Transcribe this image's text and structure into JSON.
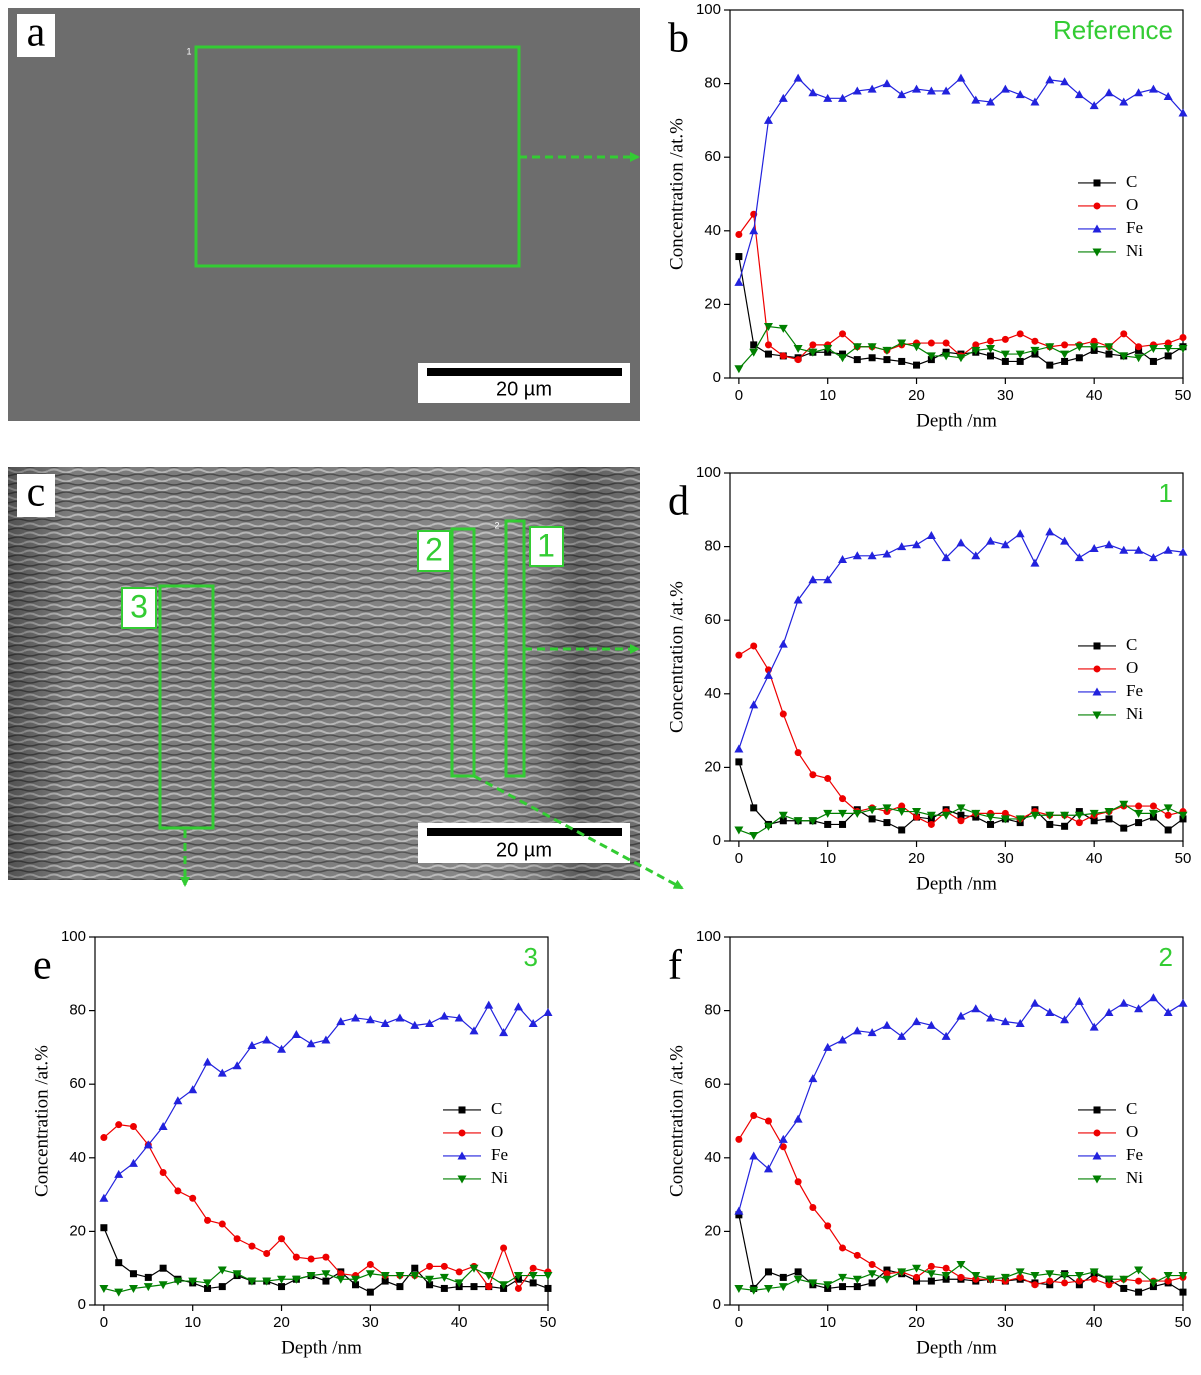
{
  "images": [
    {
      "panel_label": "a",
      "scale_bar": "20 µm",
      "marker": "1"
    },
    {
      "panel_label": "c",
      "scale_bar": "20 µm",
      "marker": "2",
      "regions": [
        "1",
        "2",
        "3"
      ]
    }
  ],
  "chart_data": [
    {
      "type": "line",
      "panel_label": "b",
      "annotation": "Reference",
      "x_label": "Depth /nm",
      "y_label": "Concentration /at.%",
      "x": [
        0,
        1.67,
        3.33,
        5,
        6.67,
        8.33,
        10,
        11.67,
        13.33,
        15,
        16.67,
        18.33,
        20,
        21.67,
        23.33,
        25,
        26.67,
        28.33,
        30,
        31.67,
        33.33,
        35,
        36.67,
        38.33,
        40,
        41.67,
        43.33,
        45,
        46.67,
        48.33,
        50
      ],
      "xlim": [
        -1,
        50
      ],
      "ylim": [
        0,
        100
      ],
      "xticks": [
        0,
        10,
        20,
        30,
        40,
        50
      ],
      "yticks": [
        0,
        20,
        40,
        60,
        80,
        100
      ],
      "legend": "right",
      "series": [
        {
          "name": "C",
          "color": "#000000",
          "marker": "square",
          "values": [
            33,
            9,
            6.5,
            6,
            5.5,
            7,
            7,
            6.5,
            5,
            5.5,
            5,
            4.5,
            3.5,
            5,
            7,
            6.5,
            7,
            6,
            4.5,
            4.5,
            6.5,
            3.5,
            4.5,
            5.5,
            7.5,
            6.5,
            6,
            7.5,
            4.5,
            6,
            8.5
          ]
        },
        {
          "name": "O",
          "color": "#ee0000",
          "marker": "circle",
          "values": [
            39,
            44.5,
            9,
            6,
            5,
            9,
            9,
            12,
            8.5,
            8.5,
            7.5,
            9,
            9.5,
            9.5,
            9.5,
            6,
            9,
            10,
            10.5,
            12,
            10,
            8.5,
            9,
            9,
            10,
            8.5,
            12,
            8.5,
            9,
            9.5,
            11
          ]
        },
        {
          "name": "Fe",
          "color": "#2222dd",
          "marker": "triangle-up",
          "values": [
            26,
            40,
            70,
            76,
            81.5,
            77.5,
            76,
            76,
            78,
            78.5,
            80,
            77,
            78.5,
            78,
            78,
            81.5,
            75.5,
            75,
            78.5,
            77,
            75,
            81,
            80.5,
            77,
            74,
            77.5,
            75,
            77.5,
            78.5,
            76.5,
            72
          ]
        },
        {
          "name": "Ni",
          "color": "#008000",
          "marker": "triangle-down",
          "values": [
            2.5,
            7,
            14,
            13.5,
            8,
            7,
            8,
            5.5,
            8.5,
            8.5,
            7.5,
            9.5,
            8.5,
            6,
            6,
            5.5,
            7.5,
            8,
            6.5,
            6.5,
            7.5,
            8.5,
            6.5,
            8.5,
            8.5,
            8.5,
            6,
            5.5,
            8,
            8,
            8
          ]
        }
      ]
    },
    {
      "type": "line",
      "panel_label": "d",
      "annotation": "1",
      "x_label": "Depth /nm",
      "y_label": "Concentration /at.%",
      "x": [
        0,
        1.67,
        3.33,
        5,
        6.67,
        8.33,
        10,
        11.67,
        13.33,
        15,
        16.67,
        18.33,
        20,
        21.67,
        23.33,
        25,
        26.67,
        28.33,
        30,
        31.67,
        33.33,
        35,
        36.67,
        38.33,
        40,
        41.67,
        43.33,
        45,
        46.67,
        48.33,
        50
      ],
      "xlim": [
        -1,
        50
      ],
      "ylim": [
        0,
        100
      ],
      "xticks": [
        0,
        10,
        20,
        30,
        40,
        50
      ],
      "yticks": [
        0,
        20,
        40,
        60,
        80,
        100
      ],
      "legend": "right",
      "series": [
        {
          "name": "C",
          "color": "#000000",
          "marker": "square",
          "values": [
            21.5,
            9,
            4.5,
            5.5,
            5.5,
            5.5,
            4.5,
            4.5,
            8.5,
            6,
            5,
            3,
            6.5,
            6,
            8.5,
            7,
            6.5,
            4.5,
            6,
            5,
            8.5,
            4.5,
            4,
            8,
            5.5,
            6,
            3.5,
            5,
            6.5,
            3,
            6
          ]
        },
        {
          "name": "O",
          "color": "#ee0000",
          "marker": "circle",
          "values": [
            50.5,
            53,
            46.5,
            34.5,
            24,
            18,
            17,
            11.5,
            8,
            9,
            8,
            9.5,
            6.5,
            4.5,
            8,
            5.5,
            7.5,
            7.5,
            7.5,
            6,
            8,
            7,
            7,
            5,
            7,
            8,
            9.5,
            9.5,
            9.5,
            7,
            8
          ]
        },
        {
          "name": "Fe",
          "color": "#2222dd",
          "marker": "triangle-up",
          "values": [
            25,
            37,
            45,
            53.5,
            65.5,
            71,
            71,
            76.5,
            77.5,
            77.5,
            78,
            80,
            80.5,
            83,
            77,
            81,
            77.5,
            81.5,
            80.5,
            83.5,
            75.5,
            84,
            81.5,
            77,
            79.5,
            80.5,
            79,
            79,
            77,
            79,
            78.5
          ]
        },
        {
          "name": "Ni",
          "color": "#008000",
          "marker": "triangle-down",
          "values": [
            3,
            1.5,
            4,
            7,
            5.5,
            5.5,
            7.5,
            7.5,
            7.5,
            8.5,
            9,
            8,
            8,
            7,
            7,
            9,
            7.5,
            6.5,
            6,
            6,
            7,
            7,
            7,
            7,
            7.5,
            8,
            10,
            7.5,
            7.5,
            9,
            7
          ]
        }
      ]
    },
    {
      "type": "line",
      "panel_label": "e",
      "annotation": "3",
      "x_label": "Depth /nm",
      "y_label": "Concentration /at.%",
      "x": [
        0,
        1.67,
        3.33,
        5,
        6.67,
        8.33,
        10,
        11.67,
        13.33,
        15,
        16.67,
        18.33,
        20,
        21.67,
        23.33,
        25,
        26.67,
        28.33,
        30,
        31.67,
        33.33,
        35,
        36.67,
        38.33,
        40,
        41.67,
        43.33,
        45,
        46.67,
        48.33,
        50
      ],
      "xlim": [
        -1,
        50
      ],
      "ylim": [
        0,
        100
      ],
      "xticks": [
        0,
        10,
        20,
        30,
        40,
        50
      ],
      "yticks": [
        0,
        20,
        40,
        60,
        80,
        100
      ],
      "legend": "right",
      "series": [
        {
          "name": "C",
          "color": "#000000",
          "marker": "square",
          "values": [
            21,
            11.5,
            8.5,
            7.5,
            10,
            7,
            6,
            4.5,
            5,
            8,
            6.5,
            6.5,
            5,
            7,
            8,
            6.5,
            9,
            5.5,
            3.5,
            6.5,
            5,
            10,
            5.5,
            4.5,
            5,
            5,
            5,
            4.5,
            7,
            6,
            4.5
          ]
        },
        {
          "name": "O",
          "color": "#ee0000",
          "marker": "circle",
          "values": [
            45.5,
            49,
            48.5,
            43.5,
            36,
            31,
            29,
            23,
            22,
            18,
            16,
            14,
            18,
            13,
            12.5,
            13,
            8.5,
            8,
            11,
            8,
            8,
            8,
            10.5,
            10.5,
            9,
            10.5,
            5,
            15.5,
            4.5,
            10,
            9
          ]
        },
        {
          "name": "Fe",
          "color": "#2222dd",
          "marker": "triangle-up",
          "values": [
            29,
            35.5,
            38.5,
            43.5,
            48.5,
            55.5,
            58.5,
            66,
            63,
            65,
            70.5,
            72,
            69.5,
            73.5,
            71,
            72,
            77,
            78,
            77.5,
            76.5,
            78,
            76,
            76.5,
            78.5,
            78,
            74.5,
            81.5,
            74,
            81,
            76.5,
            79.5
          ]
        },
        {
          "name": "Ni",
          "color": "#008000",
          "marker": "triangle-down",
          "values": [
            4.5,
            3.5,
            4.5,
            5,
            5.5,
            6.5,
            6.5,
            6,
            9.5,
            8.5,
            6.5,
            6.5,
            7,
            7,
            8,
            8.5,
            7,
            7,
            8.5,
            8,
            8,
            8,
            7,
            7.5,
            6,
            10,
            8,
            5.5,
            8,
            8,
            8
          ]
        }
      ]
    },
    {
      "type": "line",
      "panel_label": "f",
      "annotation": "2",
      "x_label": "Depth /nm",
      "y_label": "Concentration /at.%",
      "x": [
        0,
        1.67,
        3.33,
        5,
        6.67,
        8.33,
        10,
        11.67,
        13.33,
        15,
        16.67,
        18.33,
        20,
        21.67,
        23.33,
        25,
        26.67,
        28.33,
        30,
        31.67,
        33.33,
        35,
        36.67,
        38.33,
        40,
        41.67,
        43.33,
        45,
        46.67,
        48.33,
        50
      ],
      "xlim": [
        -1,
        50
      ],
      "ylim": [
        0,
        100
      ],
      "xticks": [
        0,
        10,
        20,
        30,
        40,
        50
      ],
      "yticks": [
        0,
        20,
        40,
        60,
        80,
        100
      ],
      "legend": "right",
      "series": [
        {
          "name": "C",
          "color": "#000000",
          "marker": "square",
          "values": [
            24.5,
            4.5,
            9,
            7.5,
            9,
            5.5,
            4.5,
            5,
            5,
            6,
            9.5,
            8.5,
            6.5,
            6.5,
            7,
            7,
            6.5,
            7,
            6.5,
            7,
            6,
            5.5,
            8.5,
            5.5,
            8.5,
            7,
            4.5,
            3.5,
            5,
            6,
            3.5
          ]
        },
        {
          "name": "O",
          "color": "#ee0000",
          "marker": "circle",
          "values": [
            45,
            51.5,
            50,
            43,
            33.5,
            26.5,
            21.5,
            15.5,
            13.5,
            11,
            8.5,
            9,
            7.5,
            10.5,
            10,
            7.5,
            7,
            7,
            6.5,
            7.5,
            5.5,
            6.5,
            6,
            6.5,
            7,
            5.5,
            7,
            6.5,
            6.5,
            6.5,
            7.5
          ]
        },
        {
          "name": "Fe",
          "color": "#2222dd",
          "marker": "triangle-up",
          "values": [
            25.5,
            40.5,
            37,
            45,
            50.5,
            61.5,
            70,
            72,
            74.5,
            74,
            76,
            73,
            77,
            76,
            73,
            78.5,
            80.5,
            78,
            77,
            76.5,
            82,
            79.5,
            77.5,
            82.5,
            75.5,
            79.5,
            82,
            80.5,
            83.5,
            79.5,
            82
          ]
        },
        {
          "name": "Ni",
          "color": "#008000",
          "marker": "triangle-down",
          "values": [
            4.5,
            4,
            4.5,
            5,
            7,
            6,
            5.5,
            7.5,
            7,
            8.5,
            7,
            9,
            10,
            8.5,
            8,
            11,
            8,
            7,
            7.5,
            9,
            8,
            8.5,
            8,
            8,
            9,
            7,
            7,
            9.5,
            6,
            8,
            8
          ]
        }
      ]
    }
  ]
}
